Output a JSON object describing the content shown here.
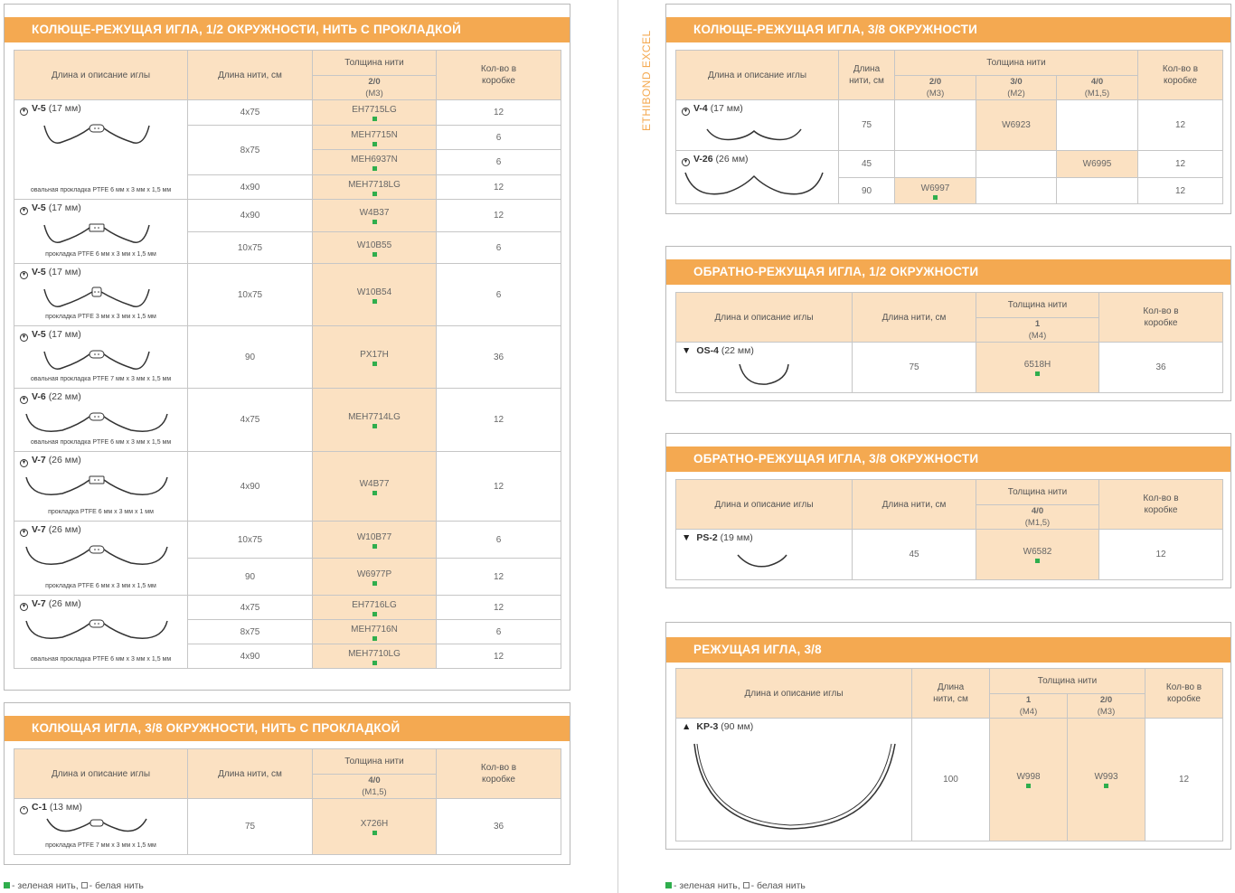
{
  "legend": {
    "green": "- зеленая нить,",
    "white": "- белая нить"
  },
  "side_label": "ETHIBOND EXCEL",
  "headers": {
    "needle": "Длина и описание иглы",
    "length": "Длина нити, см",
    "length_short": "Длина нити, см",
    "thickness": "Толщина нити",
    "qty": "Кол-во в коробке"
  },
  "sec1": {
    "title": "КОЛЮЩЕ-РЕЖУЩАЯ ИГЛА, 1/2 ОКРУЖНОСТИ, НИТЬ С ПРОКЛАДКОЙ",
    "size": "2/0",
    "metric": "(М3)",
    "groups": [
      {
        "name": "V-5",
        "mm": "(17 мм)",
        "label": "овальная прокладка PTFE 6 мм x 3 мм x 1,5 мм",
        "rows": [
          {
            "len": "4x75",
            "code": "EH7715LG",
            "qty": "12"
          },
          {
            "len": "8x75",
            "code": "MEH7715N",
            "qty": "6"
          },
          {
            "len": "",
            "code": "MEH6937N",
            "qty": "6"
          },
          {
            "len": "4x90",
            "code": "MEH7718LG",
            "qty": "12"
          }
        ]
      },
      {
        "name": "V-5",
        "mm": "(17 мм)",
        "label": "прокладка PTFE 6 мм x 3 мм x 1,5 мм",
        "rows": [
          {
            "len": "4x90",
            "code": "W4B37",
            "qty": "12"
          },
          {
            "len": "10x75",
            "code": "W10B55",
            "qty": "6"
          }
        ]
      },
      {
        "name": "V-5",
        "mm": "(17 мм)",
        "label": "прокладка PTFE 3 мм x 3 мм x 1,5 мм",
        "rows": [
          {
            "len": "10x75",
            "code": "W10B54",
            "qty": "6"
          }
        ]
      },
      {
        "name": "V-5",
        "mm": "(17 мм)",
        "label": "овальная прокладка PTFE 7 мм x 3 мм x 1,5 мм",
        "rows": [
          {
            "len": "90",
            "code": "PX17H",
            "qty": "36"
          }
        ]
      },
      {
        "name": "V-6",
        "mm": "(22 мм)",
        "label": "овальная прокладка PTFE 6 мм x 3 мм x 1,5 мм",
        "rows": [
          {
            "len": "4x75",
            "code": "MEH7714LG",
            "qty": "12"
          }
        ]
      },
      {
        "name": "V-7",
        "mm": "(26 мм)",
        "label": "прокладка PTFE 6 мм x 3 мм x 1 мм",
        "rows": [
          {
            "len": "4x90",
            "code": "W4B77",
            "qty": "12"
          }
        ]
      },
      {
        "name": "V-7",
        "mm": "(26 мм)",
        "label": "прокладка PTFE 6 мм x 3 мм x 1,5 мм",
        "rows": [
          {
            "len": "10x75",
            "code": "W10B77",
            "qty": "6"
          },
          {
            "len": "90",
            "code": "W6977P",
            "qty": "12"
          }
        ]
      },
      {
        "name": "V-7",
        "mm": "(26 мм)",
        "label": "овальная прокладка PTFE 6 мм x 3 мм x 1,5 мм",
        "rows": [
          {
            "len": "4x75",
            "code": "EH7716LG",
            "qty": "12"
          },
          {
            "len": "8x75",
            "code": "MEH7716N",
            "qty": "6"
          },
          {
            "len": "4x90",
            "code": "MEH7710LG",
            "qty": "12"
          }
        ]
      }
    ]
  },
  "sec2": {
    "title": "КОЛЮЩАЯ ИГЛА, 3/8 ОКРУЖНОСТИ, НИТЬ С ПРОКЛАДКОЙ",
    "size": "4/0",
    "metric": "(М1,5)",
    "needle": {
      "name": "C-1",
      "mm": "(13 мм)",
      "label": "прокладка PTFE 7 мм x 3 мм x 1,5 мм"
    },
    "row": {
      "len": "75",
      "code": "X726H",
      "qty": "36"
    }
  },
  "sec3": {
    "title": "КОЛЮЩЕ-РЕЖУЩАЯ ИГЛА, 3/8 ОКРУЖНОСТИ",
    "sizes": [
      {
        "size": "2/0",
        "metric": "(М3)"
      },
      {
        "size": "3/0",
        "metric": "(М2)"
      },
      {
        "size": "4/0",
        "metric": "(М1,5)"
      }
    ],
    "n1": {
      "name": "V-4",
      "mm": "(17 мм)",
      "len": "75",
      "code": "W6923",
      "qty": "12"
    },
    "n2": {
      "name": "V-26",
      "mm": "(26 мм)",
      "rows": [
        {
          "len": "45",
          "code": "W6995",
          "qty": "12"
        },
        {
          "len": "90",
          "code": "W6997",
          "qty": "12"
        }
      ]
    }
  },
  "sec4": {
    "title": "ОБРАТНО-РЕЖУЩАЯ ИГЛА, 1/2 ОКРУЖНОСТИ",
    "size": "1",
    "metric": "(М4)",
    "needle": {
      "name": "OS-4",
      "mm": "(22 мм)"
    },
    "row": {
      "len": "75",
      "code": "6518H",
      "qty": "36"
    }
  },
  "sec5": {
    "title": "ОБРАТНО-РЕЖУЩАЯ ИГЛА, 3/8 ОКРУЖНОСТИ",
    "size": "4/0",
    "metric": "(М1,5)",
    "needle": {
      "name": "PS-2",
      "mm": "(19 мм)"
    },
    "row": {
      "len": "45",
      "code": "W6582",
      "qty": "12"
    }
  },
  "sec6": {
    "title": "РЕЖУЩАЯ ИГЛА, 3/8",
    "sizes": [
      {
        "size": "1",
        "metric": "(М4)"
      },
      {
        "size": "2/0",
        "metric": "(М3)"
      }
    ],
    "needle": {
      "name": "KP-3",
      "mm": "(90 мм)"
    },
    "row": {
      "len": "100",
      "code1": "W998",
      "code2": "W993",
      "qty": "12"
    }
  }
}
